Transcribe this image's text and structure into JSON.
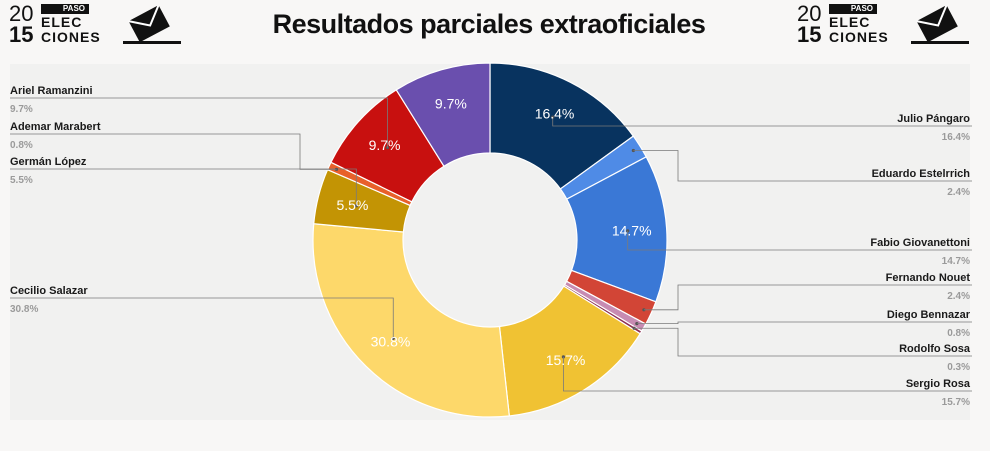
{
  "header": {
    "title": "Resultados parciales extraoficiales",
    "logo": {
      "year_top": "20",
      "year_bottom": "15",
      "badge": "PASO",
      "line1": "ELEC",
      "line2": "CIONES"
    }
  },
  "chart_data": {
    "type": "pie",
    "donut": true,
    "title": "Resultados parciales extraoficiales",
    "slices": [
      {
        "name": "Julio Pángaro",
        "value": 16.4,
        "label": "16.4%",
        "color": "#08335f",
        "side": "right"
      },
      {
        "name": "Eduardo Estelrrich",
        "value": 2.4,
        "label": "2.4%",
        "color": "#4f8be6",
        "side": "right"
      },
      {
        "name": "Fabio Giovanettoni",
        "value": 14.7,
        "label": "14.7%",
        "color": "#3a78d6",
        "side": "right"
      },
      {
        "name": "Fernando Nouet",
        "value": 2.4,
        "label": "2.4%",
        "color": "#d24536",
        "side": "right"
      },
      {
        "name": "Diego Bennazar",
        "value": 0.8,
        "label": "0.8%",
        "color": "#c78bb2",
        "side": "right"
      },
      {
        "name": "Rodolfo Sosa",
        "value": 0.3,
        "label": "0.3%",
        "color": "#8c2f52",
        "side": "right"
      },
      {
        "name": "Sergio Rosa",
        "value": 15.7,
        "label": "15.7%",
        "color": "#f0c233",
        "side": "right"
      },
      {
        "name": "Cecilio Salazar",
        "value": 30.8,
        "label": "30.8%",
        "color": "#fdd86a",
        "side": "left"
      },
      {
        "name": "Germán López",
        "value": 5.5,
        "label": "5.5%",
        "color": "#c39404",
        "side": "left"
      },
      {
        "name": "Ademar Marabert",
        "value": 0.8,
        "label": "0.8%",
        "color": "#e8602a",
        "side": "left"
      },
      {
        "name": "Ariel Ramanzini",
        "value": 9.7,
        "label": "9.7%",
        "color": "#c8100f",
        "side": "left"
      },
      {
        "name": "",
        "value": 9.7,
        "label": "9.7%",
        "color": "#6a4fae",
        "side": "none"
      }
    ]
  }
}
